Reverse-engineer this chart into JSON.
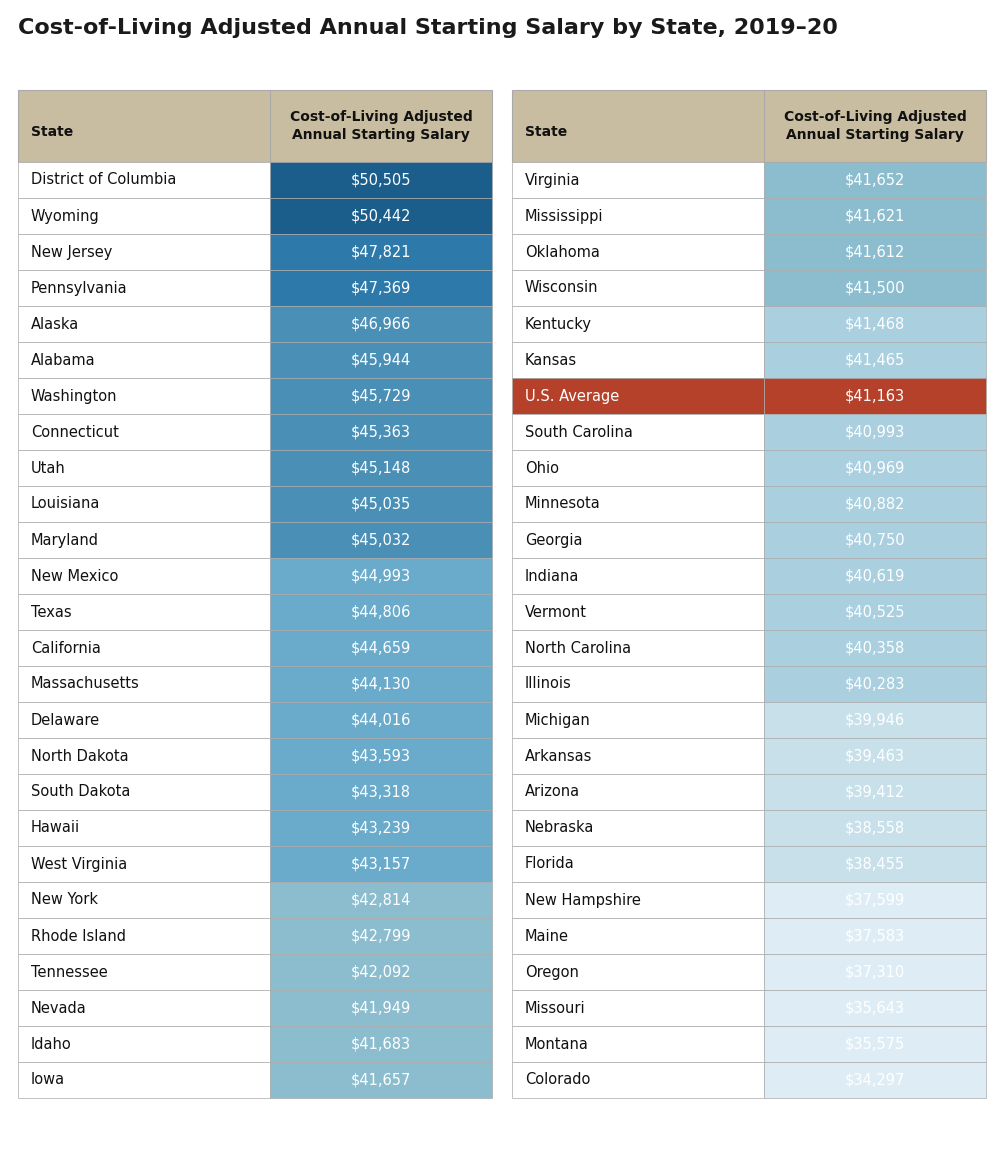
{
  "title": "Cost-of-Living Adjusted Annual Starting Salary by State, 2019–20",
  "col_header": "Cost-of-Living Adjusted\nAnnual Starting Salary",
  "left_data": [
    [
      "District of Columbia",
      "$50,505"
    ],
    [
      "Wyoming",
      "$50,442"
    ],
    [
      "New Jersey",
      "$47,821"
    ],
    [
      "Pennsylvania",
      "$47,369"
    ],
    [
      "Alaska",
      "$46,966"
    ],
    [
      "Alabama",
      "$45,944"
    ],
    [
      "Washington",
      "$45,729"
    ],
    [
      "Connecticut",
      "$45,363"
    ],
    [
      "Utah",
      "$45,148"
    ],
    [
      "Louisiana",
      "$45,035"
    ],
    [
      "Maryland",
      "$45,032"
    ],
    [
      "New Mexico",
      "$44,993"
    ],
    [
      "Texas",
      "$44,806"
    ],
    [
      "California",
      "$44,659"
    ],
    [
      "Massachusetts",
      "$44,130"
    ],
    [
      "Delaware",
      "$44,016"
    ],
    [
      "North Dakota",
      "$43,593"
    ],
    [
      "South Dakota",
      "$43,318"
    ],
    [
      "Hawaii",
      "$43,239"
    ],
    [
      "West Virginia",
      "$43,157"
    ],
    [
      "New York",
      "$42,814"
    ],
    [
      "Rhode Island",
      "$42,799"
    ],
    [
      "Tennessee",
      "$42,092"
    ],
    [
      "Nevada",
      "$41,949"
    ],
    [
      "Idaho",
      "$41,683"
    ],
    [
      "Iowa",
      "$41,657"
    ]
  ],
  "right_data": [
    [
      "Virginia",
      "$41,652"
    ],
    [
      "Mississippi",
      "$41,621"
    ],
    [
      "Oklahoma",
      "$41,612"
    ],
    [
      "Wisconsin",
      "$41,500"
    ],
    [
      "Kentucky",
      "$41,468"
    ],
    [
      "Kansas",
      "$41,465"
    ],
    [
      "U.S. Average",
      "$41,163"
    ],
    [
      "South Carolina",
      "$40,993"
    ],
    [
      "Ohio",
      "$40,969"
    ],
    [
      "Minnesota",
      "$40,882"
    ],
    [
      "Georgia",
      "$40,750"
    ],
    [
      "Indiana",
      "$40,619"
    ],
    [
      "Vermont",
      "$40,525"
    ],
    [
      "North Carolina",
      "$40,358"
    ],
    [
      "Illinois",
      "$40,283"
    ],
    [
      "Michigan",
      "$39,946"
    ],
    [
      "Arkansas",
      "$39,463"
    ],
    [
      "Arizona",
      "$39,412"
    ],
    [
      "Nebraska",
      "$38,558"
    ],
    [
      "Florida",
      "$38,455"
    ],
    [
      "New Hampshire",
      "$37,599"
    ],
    [
      "Maine",
      "$37,583"
    ],
    [
      "Oregon",
      "$37,310"
    ],
    [
      "Missouri",
      "$35,643"
    ],
    [
      "Montana",
      "$35,575"
    ],
    [
      "Colorado",
      "$34,297"
    ]
  ],
  "color_dark_blue": "#1b5e8c",
  "color_medium_blue": "#2d7aaa",
  "color_steelblue": "#4a8fb5",
  "color_light_blue": "#6aabcc",
  "color_lighter_blue": "#8bbdcf",
  "color_pale_blue": "#aacfdf",
  "color_lightest_blue": "#c8e0ea",
  "color_near_white_blue": "#deedf5",
  "color_us_avg": "#b5412a",
  "color_header_bg": "#c8bda0",
  "color_white": "#ffffff",
  "color_border": "#aaaaaa",
  "color_title": "#1a1a1a",
  "background_color": "#ffffff",
  "title_fontsize": 16,
  "header_fontsize": 10,
  "cell_fontsize": 10.5,
  "figwidth": 10.0,
  "figheight": 11.61
}
